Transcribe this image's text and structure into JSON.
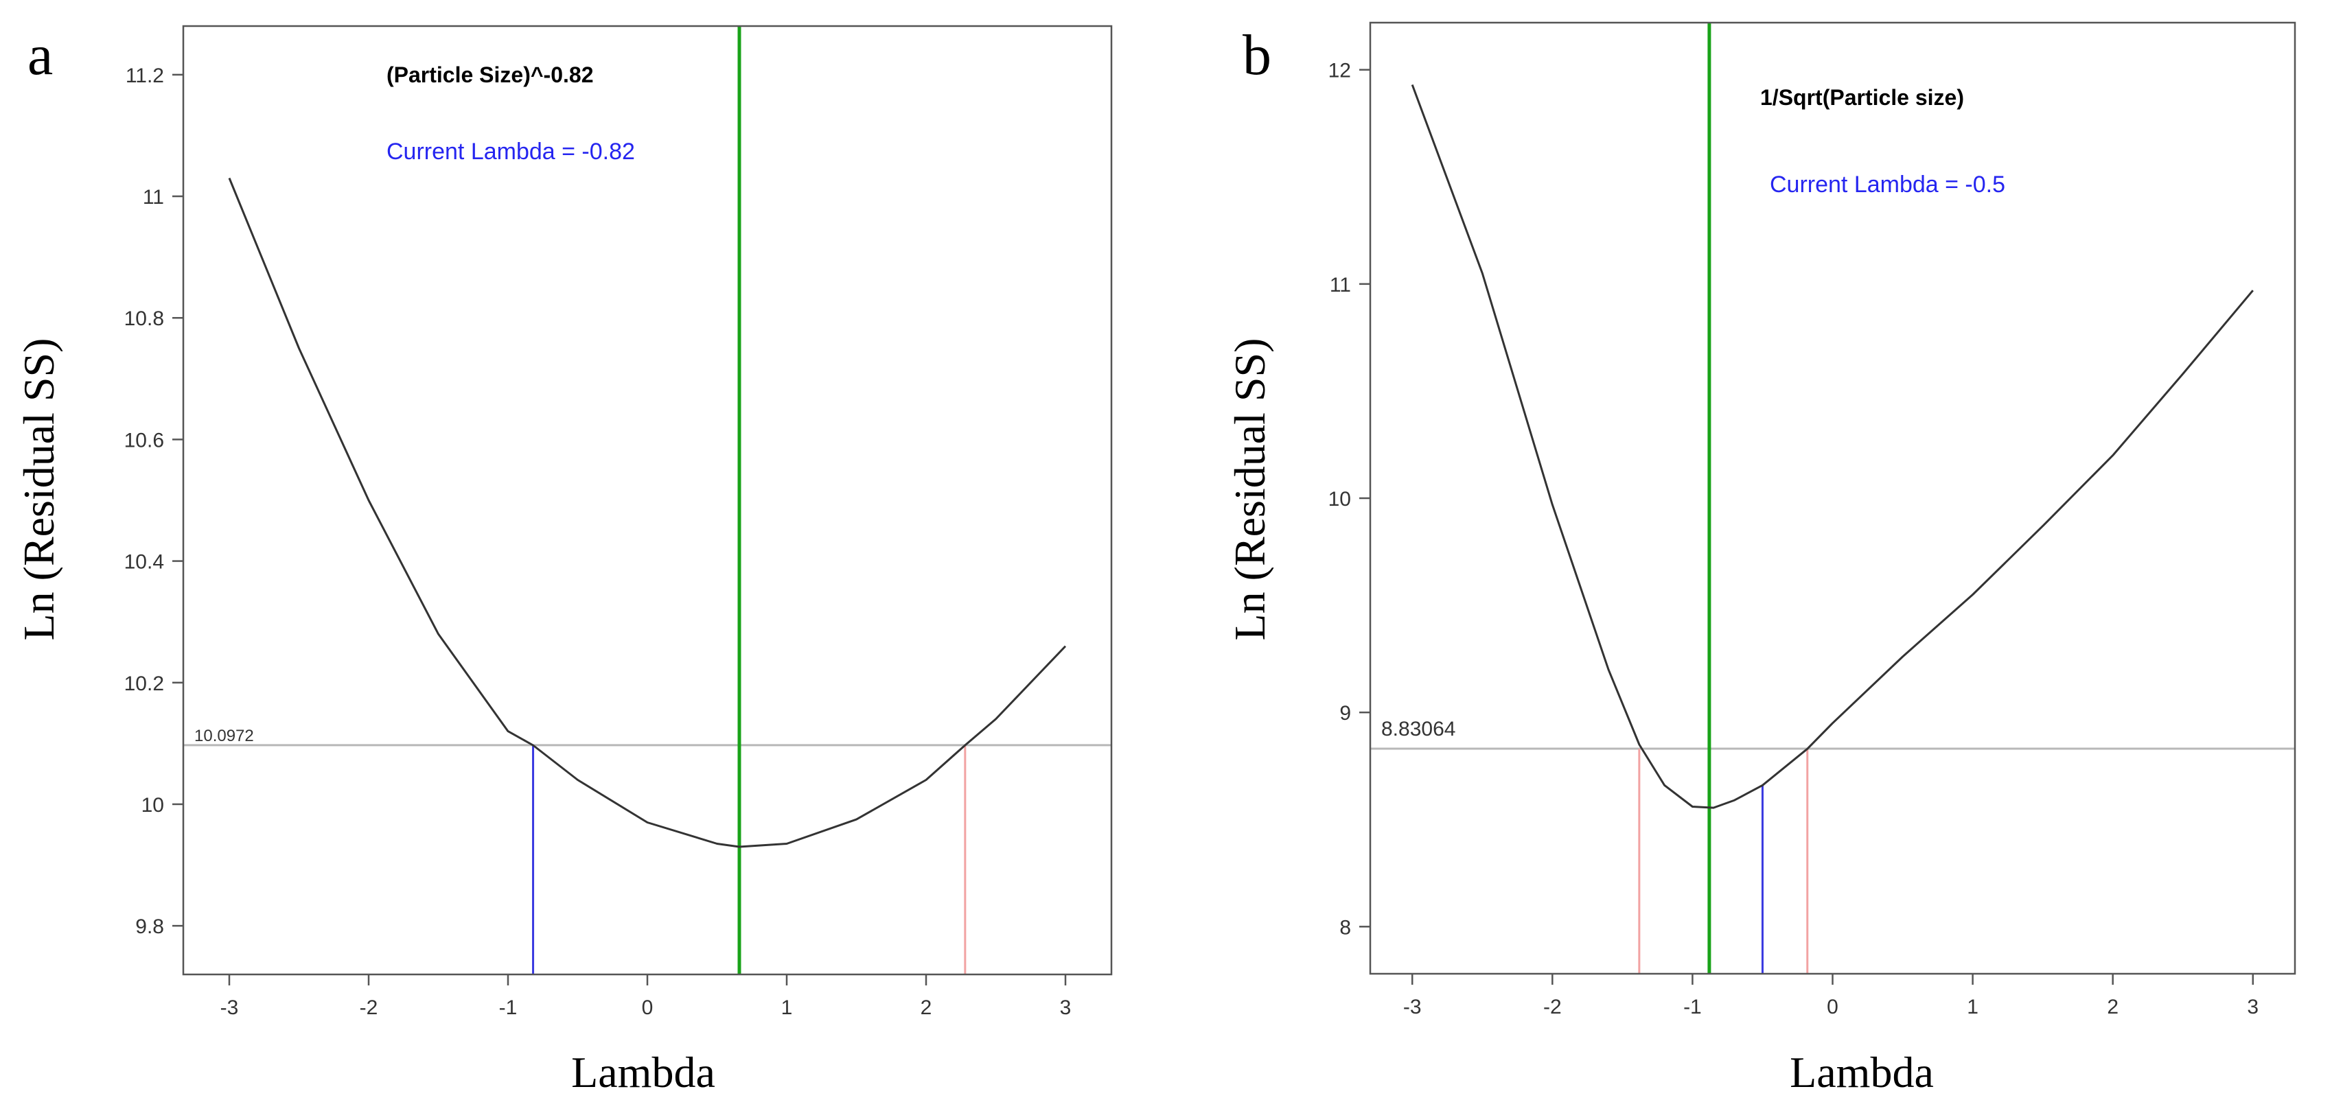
{
  "chart_data": [
    {
      "panel_label": "a",
      "type": "line",
      "title": "(Particle Size)^-0.82",
      "current_lambda_text": "Current Lambda = -0.82",
      "xlabel": "Lambda",
      "ylabel": "Ln (Residual SS)",
      "xlim": [
        -3.33,
        3.33
      ],
      "ylim": [
        9.72,
        11.28
      ],
      "xticks": [
        -3,
        -2,
        -1,
        0,
        1,
        2,
        3
      ],
      "yticks": [
        9.8,
        10,
        10.2,
        10.4,
        10.6,
        10.8,
        11,
        11.2
      ],
      "ytick_labels": [
        "9.8",
        "10",
        "10.2",
        "10.4",
        "10.6",
        "10.8",
        "11",
        "11.2"
      ],
      "threshold": 10.0972,
      "threshold_label": "10.0972",
      "best_lambda": 0.66,
      "current_lambda": -0.82,
      "ci_low": -0.82,
      "ci_high": 2.28,
      "curve": {
        "x": [
          -3.0,
          -2.5,
          -2.0,
          -1.5,
          -1.0,
          -0.82,
          -0.5,
          0.0,
          0.5,
          0.66,
          1.0,
          1.5,
          2.0,
          2.28,
          2.5,
          3.0
        ],
        "y": [
          11.03,
          10.75,
          10.5,
          10.28,
          10.12,
          10.097,
          10.04,
          9.97,
          9.935,
          9.93,
          9.935,
          9.975,
          10.04,
          10.097,
          10.14,
          10.26
        ]
      },
      "colors": {
        "curve": "#333333",
        "threshold": "#b8b8b8",
        "best": "#19a319",
        "current": "#3a3ae0",
        "ci": "#f2a3a3",
        "title": "#000000",
        "current_text": "#2525f0"
      }
    },
    {
      "panel_label": "b",
      "type": "line",
      "title": "1/Sqrt(Particle size)",
      "current_lambda_text": "Current Lambda = -0.5",
      "xlabel": "Lambda",
      "ylabel": "Ln (Residual SS)",
      "xlim": [
        -3.3,
        3.3
      ],
      "ylim": [
        7.78,
        12.22
      ],
      "xticks": [
        -3,
        -2,
        -1,
        0,
        1,
        2,
        3
      ],
      "yticks": [
        8,
        9,
        10,
        11,
        12
      ],
      "ytick_labels": [
        "8",
        "9",
        "10",
        "11",
        "12"
      ],
      "threshold": 8.83064,
      "threshold_label": "8.83064",
      "best_lambda": -0.88,
      "current_lambda": -0.5,
      "ci_low": -1.38,
      "ci_high": -0.18,
      "curve": {
        "x": [
          -3.0,
          -2.5,
          -2.0,
          -1.6,
          -1.38,
          -1.2,
          -1.0,
          -0.85,
          -0.7,
          -0.5,
          -0.18,
          0.0,
          0.5,
          1.0,
          1.5,
          2.0,
          2.5,
          3.0
        ],
        "y": [
          11.93,
          11.05,
          9.97,
          9.2,
          8.85,
          8.66,
          8.56,
          8.555,
          8.59,
          8.66,
          8.83,
          8.95,
          9.26,
          9.55,
          9.87,
          10.2,
          10.58,
          10.97
        ]
      },
      "colors": {
        "curve": "#333333",
        "threshold": "#b8b8b8",
        "best": "#19a319",
        "current": "#3a3ae0",
        "ci": "#f2a3a3",
        "title": "#000000",
        "current_text": "#2525f0"
      }
    }
  ]
}
